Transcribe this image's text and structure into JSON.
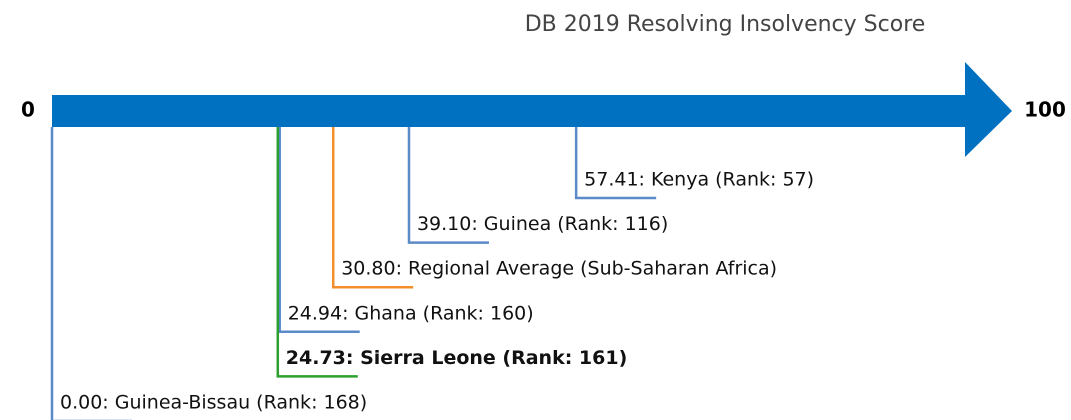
{
  "chart_data": {
    "type": "number-line",
    "title": "DB 2019 Resolving Insolvency Score",
    "xlim": [
      0,
      100
    ],
    "xticks": [
      0,
      100
    ],
    "bar_color": "#0070c0",
    "values": [
      57.41,
      39.1,
      30.8,
      24.94,
      24.73,
      0.0
    ],
    "value_labels": [
      "57.41: Kenya (Rank: 57)",
      "39.10: Guinea (Rank: 116)",
      "30.80: Regional Average (Sub-Saharan Africa)",
      "24.94: Ghana (Rank: 160)",
      "24.73: Sierra Leone (Rank: 161)",
      "0.00: Guinea-Bissau (Rank: 168)"
    ],
    "colors": [
      "#5b8ac9",
      "#5b8ac9",
      "#f28e2b",
      "#5b8ac9",
      "#2ca02c",
      "#5b8ac9"
    ],
    "bold": [
      false,
      false,
      false,
      false,
      true,
      false
    ]
  }
}
